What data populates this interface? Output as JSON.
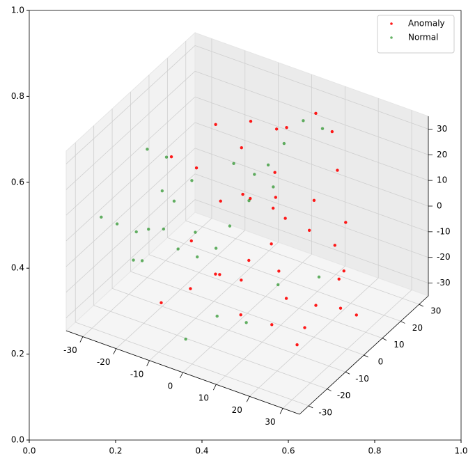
{
  "chart_data": [
    {
      "type": "axes",
      "xlim": [
        0,
        1
      ],
      "ylim": [
        0,
        1
      ],
      "xticks": [
        {
          "value": 0,
          "label": "0.0"
        },
        0.2,
        0.4,
        0.6,
        0.8,
        {
          "value": 1,
          "label": "1.0"
        }
      ],
      "yticks": [
        {
          "value": 0,
          "label": "0.0"
        },
        0.2,
        0.4,
        0.6,
        0.8,
        {
          "value": 1,
          "label": "1.0"
        }
      ]
    },
    {
      "type": "scatter3d",
      "xlim": [
        -35,
        35
      ],
      "ylim": [
        -35,
        35
      ],
      "zlim": [
        -35,
        35
      ],
      "xticks": [
        -30,
        -20,
        -10,
        0,
        10,
        20,
        30
      ],
      "yticks": [
        -30,
        -20,
        -10,
        0,
        10,
        20,
        30
      ],
      "zticks": [
        -30,
        -20,
        -10,
        0,
        10,
        20,
        30
      ],
      "grid": true,
      "legend": "upper right",
      "series": [
        {
          "name": "Anomaly",
          "color": "#ff0000",
          "x": [
            -20,
            -15,
            -10,
            -5,
            0,
            5,
            10,
            15,
            20,
            25,
            28,
            30,
            -8,
            -3,
            2,
            7,
            12,
            18,
            22,
            26,
            -12,
            -6,
            0,
            6,
            12,
            -18,
            -10,
            -2,
            4,
            10,
            16,
            24,
            29,
            20,
            14,
            8,
            -4,
            -14,
            3,
            9
          ],
          "y": [
            -5,
            10,
            20,
            25,
            15,
            5,
            -5,
            -10,
            -15,
            -8,
            0,
            5,
            0,
            3,
            -2,
            8,
            12,
            15,
            10,
            -20,
            -25,
            -20,
            -15,
            -10,
            -25,
            5,
            15,
            25,
            30,
            28,
            20,
            10,
            0,
            -5,
            -12,
            -18,
            -10,
            -5,
            10,
            20
          ],
          "z": [
            20,
            25,
            22,
            18,
            10,
            5,
            0,
            -5,
            -10,
            -15,
            -20,
            -25,
            5,
            8,
            12,
            0,
            -5,
            -10,
            -18,
            -22,
            -20,
            -15,
            -10,
            -5,
            0,
            10,
            15,
            20,
            25,
            22,
            15,
            5,
            -5,
            -28,
            -25,
            -20,
            -15,
            -10,
            5,
            0
          ]
        },
        {
          "name": "Normal",
          "color": "#008000",
          "x": [
            -30,
            -28,
            -25,
            -22,
            -20,
            -18,
            -15,
            -12,
            -10,
            -8,
            -5,
            -2,
            0,
            3,
            6,
            -26,
            -24,
            -20,
            -16,
            -14,
            -10,
            -6,
            -3,
            2,
            8,
            12,
            16,
            -30,
            -27,
            -23
          ],
          "y": [
            -25,
            -20,
            -15,
            -22,
            -10,
            -5,
            0,
            -18,
            -12,
            5,
            10,
            15,
            20,
            25,
            30,
            -10,
            -2,
            8,
            12,
            18,
            22,
            25,
            -28,
            -20,
            -15,
            -5,
            10,
            0,
            5,
            -12
          ],
          "z": [
            5,
            0,
            -5,
            -10,
            10,
            -15,
            -20,
            15,
            20,
            -8,
            0,
            12,
            18,
            25,
            20,
            -20,
            -12,
            -18,
            -25,
            5,
            0,
            -5,
            -28,
            -22,
            -25,
            -15,
            -20,
            15,
            10,
            -5
          ]
        }
      ]
    }
  ]
}
